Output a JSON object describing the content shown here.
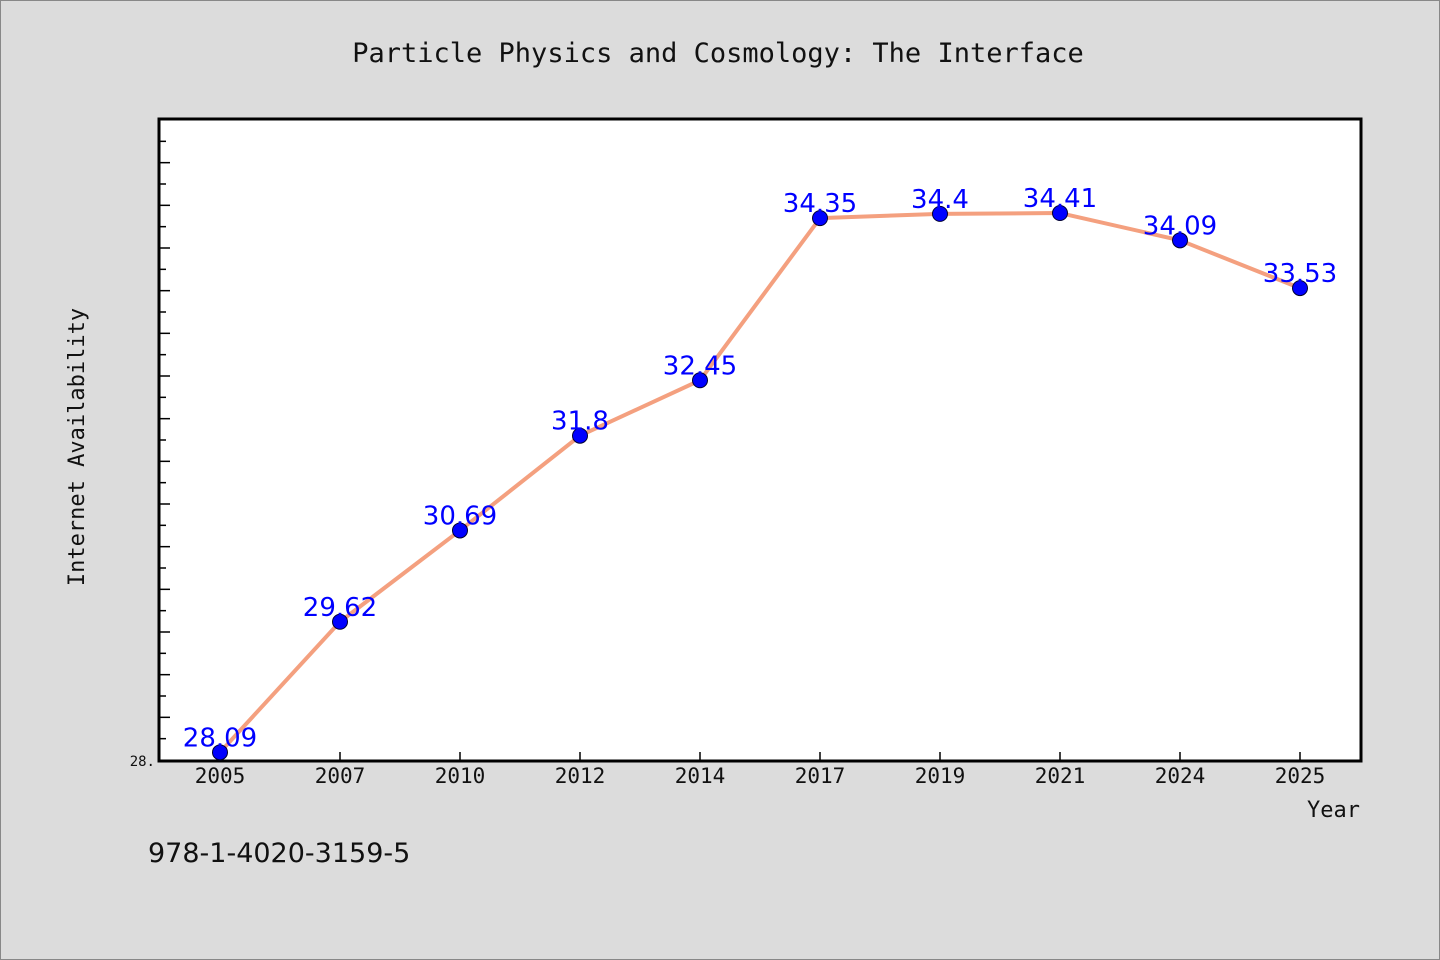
{
  "chart_data": {
    "type": "line",
    "title": "Particle Physics and Cosmology: The Interface",
    "xlabel": "Year",
    "ylabel": "Internet Availability",
    "categories": [
      "2005",
      "2007",
      "2010",
      "2012",
      "2014",
      "2017",
      "2019",
      "2021",
      "2024",
      "2025"
    ],
    "series": [
      {
        "values": [
          28.09,
          29.62,
          30.69,
          31.8,
          32.45,
          34.35,
          34.4,
          34.41,
          34.09,
          33.53
        ],
        "data_labels": [
          "28.09",
          "29.62",
          "30.69",
          "31.8",
          "32.45",
          "34.35",
          "34.4",
          "34.41",
          "34.09",
          "33.53"
        ]
      }
    ],
    "ylim": [
      28.0,
      35.5
    ],
    "y_tick_labels": [
      "28."
    ],
    "grid": false,
    "colors": {
      "line": "#f4a07f",
      "marker": "#0000ff",
      "label": "#0000ff",
      "background": "#dcdcdc",
      "plot_bg": "#ffffff"
    }
  },
  "footer": {
    "isbn": "978-1-4020-3159-5"
  }
}
